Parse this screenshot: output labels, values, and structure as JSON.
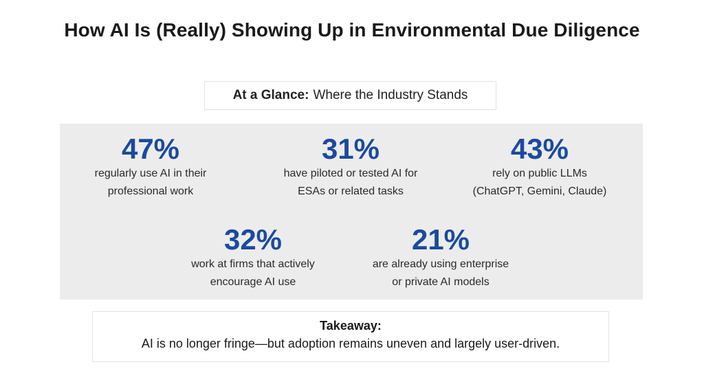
{
  "title": "How AI Is (Really) Showing Up in Environmental Due Diligence",
  "glance": {
    "label": "At a Glance:",
    "text": "Where the Industry Stands"
  },
  "stats": [
    {
      "value": "47%",
      "description": "regularly use AI in their\nprofessional work"
    },
    {
      "value": "31%",
      "description": "have piloted or tested AI for\nESAs or related tasks"
    },
    {
      "value": "43%",
      "description": "rely on public LLMs\n(ChatGPT, Gemini, Claude)"
    },
    {
      "value": "32%",
      "description": "work at firms that actively\nencourage AI use"
    },
    {
      "value": "21%",
      "description": "are already using enterprise\nor private AI models"
    }
  ],
  "takeaway": {
    "heading": "Takeaway:",
    "text": "AI is no longer fringe—but adoption remains uneven and largely user-driven."
  },
  "colors": {
    "stat_accent": "#1b4a9e",
    "panel_background": "#ececec"
  }
}
